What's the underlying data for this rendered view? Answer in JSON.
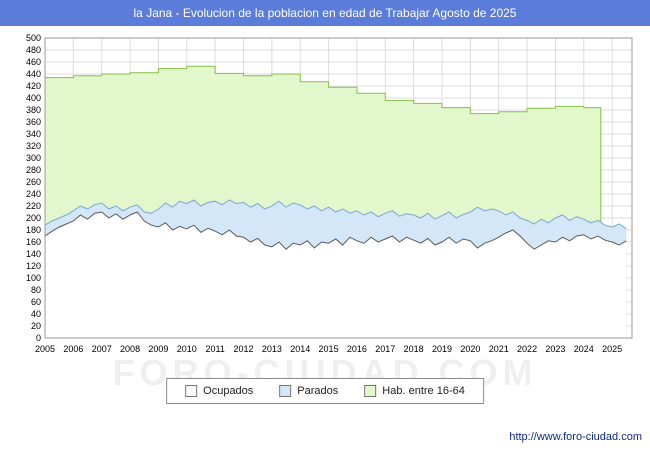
{
  "title": "la Jana - Evolucion de la poblacion en edad de Trabajar Agosto de 2025",
  "watermark": "FORO-CIUDAD.COM",
  "footer": {
    "url": "http://www.foro-ciudad.com"
  },
  "colors": {
    "titlebar_bg": "#5b7cd9",
    "hab_fill": "#e2f7cb",
    "hab_stroke": "#84c146",
    "parados_fill": "#d4e7f8",
    "parados_stroke": "#7da6d6",
    "ocupados_fill": "#ffffff",
    "ocupados_stroke": "#5a5a5a",
    "grid": "#dcdcdc",
    "plot_border": "#9a9a9a",
    "footer_link": "#0b2a8a"
  },
  "legend": {
    "items": [
      {
        "label": "Ocupados",
        "fill": "#ffffff"
      },
      {
        "label": "Parados",
        "fill": "#d4e7f8"
      },
      {
        "label": "Hab. entre 16-64",
        "fill": "#e2f7cb"
      }
    ]
  },
  "chart_data": {
    "type": "area",
    "title": "la Jana - Evolucion de la poblacion en edad de Trabajar Agosto de 2025",
    "xlabel": "",
    "ylabel": "",
    "ylim": [
      0,
      500
    ],
    "ytick_step": 20,
    "grid": true,
    "legend_position": "bottom",
    "x_years": [
      2005,
      2006,
      2007,
      2008,
      2009,
      2010,
      2011,
      2012,
      2013,
      2014,
      2015,
      2016,
      2017,
      2018,
      2019,
      2020,
      2021,
      2022,
      2023,
      2024,
      2025
    ],
    "series": [
      {
        "name": "Hab. entre 16-64",
        "render": "step-area",
        "x": [
          2005,
          2006,
          2007,
          2008,
          2009,
          2010,
          2011,
          2012,
          2013,
          2014,
          2015,
          2016,
          2017,
          2018,
          2019,
          2020,
          2021,
          2022,
          2023,
          2024
        ],
        "values": [
          434,
          437,
          440,
          442,
          449,
          453,
          441,
          437,
          440,
          427,
          418,
          408,
          396,
          391,
          384,
          374,
          377,
          383,
          386,
          384
        ],
        "end_x": 2024.6,
        "fill": "#e2f7cb",
        "stroke": "#84c146"
      },
      {
        "name": "Parados",
        "render": "area",
        "x_start": 2005,
        "x_step": 0.25,
        "values": [
          188,
          195,
          200,
          205,
          212,
          220,
          215,
          222,
          225,
          215,
          220,
          212,
          218,
          222,
          210,
          208,
          215,
          225,
          218,
          228,
          224,
          230,
          220,
          226,
          228,
          222,
          230,
          224,
          226,
          218,
          224,
          215,
          220,
          228,
          218,
          225,
          222,
          215,
          220,
          212,
          218,
          210,
          215,
          208,
          212,
          205,
          210,
          202,
          208,
          212,
          203,
          207,
          205,
          200,
          208,
          198,
          204,
          210,
          200,
          206,
          210,
          218,
          212,
          215,
          212,
          205,
          210,
          200,
          196,
          190,
          198,
          192,
          200,
          205,
          196,
          202,
          198,
          192,
          196,
          188,
          185,
          190,
          182
        ],
        "fill": "#d4e7f8",
        "stroke": "#7da6d6",
        "note": "top of band = Ocupados + Parados"
      },
      {
        "name": "Ocupados",
        "render": "area",
        "x_start": 2005,
        "x_step": 0.25,
        "values": [
          170,
          178,
          185,
          190,
          195,
          205,
          198,
          208,
          210,
          200,
          207,
          198,
          205,
          210,
          195,
          188,
          185,
          192,
          180,
          186,
          182,
          188,
          176,
          183,
          178,
          172,
          180,
          170,
          168,
          160,
          166,
          155,
          152,
          160,
          148,
          158,
          155,
          162,
          150,
          160,
          158,
          165,
          155,
          168,
          162,
          158,
          168,
          160,
          165,
          170,
          160,
          168,
          163,
          158,
          166,
          155,
          160,
          168,
          158,
          165,
          162,
          150,
          158,
          162,
          168,
          175,
          180,
          170,
          158,
          148,
          155,
          162,
          160,
          168,
          162,
          170,
          172,
          165,
          170,
          163,
          160,
          155,
          162
        ],
        "fill": "#ffffff",
        "stroke": "#5a5a5a"
      }
    ]
  }
}
